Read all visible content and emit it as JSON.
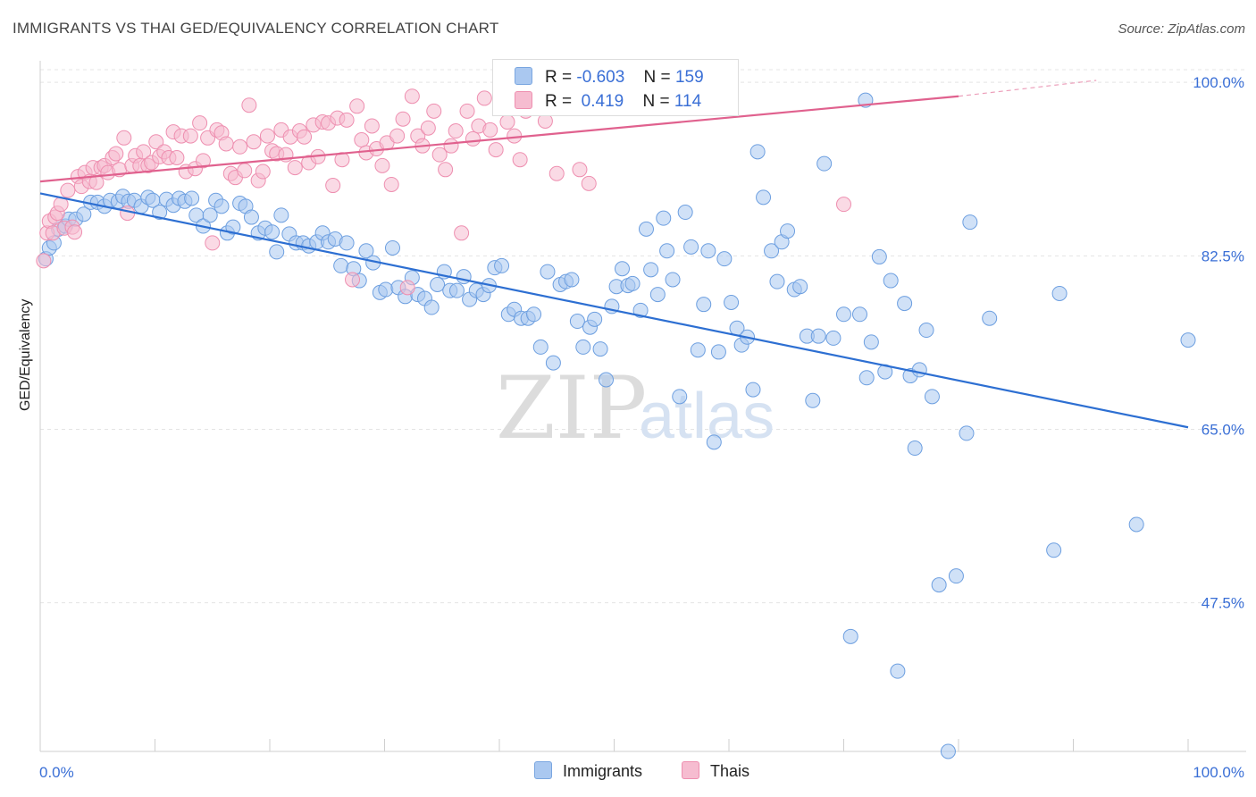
{
  "title": "IMMIGRANTS VS THAI GED/EQUIVALENCY CORRELATION CHART",
  "source": "Source: ZipAtlas.com",
  "watermark_zip": "ZIP",
  "watermark_atlas": "atlas",
  "legend_top": [
    {
      "r_label": "R =",
      "r_value": "-0.603",
      "n_label": "N =",
      "n_value": "159",
      "color": "#aac8f0",
      "border": "#7aa6e0"
    },
    {
      "r_label": "R =",
      "r_value": " 0.419",
      "n_label": "N =",
      "n_value": "114",
      "color": "#f6bcd0",
      "border": "#ee8fb0"
    }
  ],
  "legend_bottom": [
    {
      "label": "Immigrants",
      "color": "#aac8f0",
      "border": "#7aa6e0"
    },
    {
      "label": "Thais",
      "color": "#f6bcd0",
      "border": "#ee8fb0"
    }
  ],
  "chart_data": {
    "type": "scatter",
    "title": "IMMIGRANTS VS THAI GED/EQUIVALENCY CORRELATION CHART",
    "xlabel": "",
    "ylabel": "GED/Equivalency",
    "xlim": [
      0,
      100
    ],
    "ylim": [
      32.5,
      102
    ],
    "x_tick_labels": [
      "0.0%",
      "100.0%"
    ],
    "y_ticks": [
      47.5,
      65.0,
      82.5,
      100.0
    ],
    "y_tick_labels": [
      "47.5%",
      "65.0%",
      "82.5%",
      "100.0%"
    ],
    "grid": "horizontal dashed",
    "legend_position": "top-center",
    "series": [
      {
        "name": "Immigrants",
        "color": "#6d9fe0",
        "fill": "#aac8f0",
        "trend_color": "#2d6fd2",
        "trend": {
          "x0": 0,
          "y0": 88.8,
          "x1": 100,
          "y1": 65.2
        },
        "points": [
          [
            0.5,
            82.2
          ],
          [
            0.8,
            83.3
          ],
          [
            1.2,
            83.8
          ],
          [
            1.6,
            85.2
          ],
          [
            2.2,
            85.5
          ],
          [
            2.5,
            86.2
          ],
          [
            3.1,
            86.2
          ],
          [
            3.8,
            86.7
          ],
          [
            4.4,
            87.9
          ],
          [
            5.0,
            87.9
          ],
          [
            5.6,
            87.5
          ],
          [
            6.1,
            88.1
          ],
          [
            6.8,
            88.0
          ],
          [
            7.2,
            88.5
          ],
          [
            7.7,
            88.0
          ],
          [
            8.2,
            88.1
          ],
          [
            8.8,
            87.5
          ],
          [
            9.4,
            88.4
          ],
          [
            9.8,
            88.1
          ],
          [
            10.4,
            86.9
          ],
          [
            11.0,
            88.2
          ],
          [
            11.6,
            87.6
          ],
          [
            12.1,
            88.3
          ],
          [
            12.6,
            88.0
          ],
          [
            13.2,
            88.3
          ],
          [
            13.6,
            86.6
          ],
          [
            14.2,
            85.5
          ],
          [
            14.8,
            86.6
          ],
          [
            15.3,
            88.1
          ],
          [
            15.8,
            87.5
          ],
          [
            16.3,
            84.8
          ],
          [
            16.8,
            85.4
          ],
          [
            17.4,
            87.8
          ],
          [
            17.9,
            87.5
          ],
          [
            18.4,
            86.4
          ],
          [
            19.0,
            84.8
          ],
          [
            19.6,
            85.3
          ],
          [
            20.2,
            84.9
          ],
          [
            20.6,
            82.9
          ],
          [
            21.0,
            86.6
          ],
          [
            21.7,
            84.7
          ],
          [
            22.3,
            83.8
          ],
          [
            22.9,
            83.8
          ],
          [
            23.4,
            83.5
          ],
          [
            24.1,
            83.9
          ],
          [
            24.6,
            84.8
          ],
          [
            25.1,
            83.9
          ],
          [
            25.7,
            84.2
          ],
          [
            26.2,
            81.5
          ],
          [
            26.7,
            83.8
          ],
          [
            27.3,
            81.2
          ],
          [
            27.8,
            80.0
          ],
          [
            28.4,
            83.0
          ],
          [
            29.0,
            81.8
          ],
          [
            29.6,
            78.8
          ],
          [
            30.1,
            79.1
          ],
          [
            30.7,
            83.3
          ],
          [
            31.2,
            79.3
          ],
          [
            31.8,
            78.4
          ],
          [
            32.4,
            80.3
          ],
          [
            32.9,
            78.6
          ],
          [
            33.5,
            78.2
          ],
          [
            34.1,
            77.3
          ],
          [
            34.6,
            79.6
          ],
          [
            35.2,
            80.9
          ],
          [
            35.7,
            79.0
          ],
          [
            36.3,
            79.0
          ],
          [
            36.9,
            80.4
          ],
          [
            37.4,
            78.1
          ],
          [
            38.0,
            79.0
          ],
          [
            38.6,
            78.6
          ],
          [
            39.1,
            79.5
          ],
          [
            39.6,
            81.3
          ],
          [
            40.2,
            81.5
          ],
          [
            40.8,
            76.6
          ],
          [
            41.3,
            77.1
          ],
          [
            41.9,
            76.2
          ],
          [
            42.5,
            76.2
          ],
          [
            43.0,
            76.6
          ],
          [
            43.6,
            73.3
          ],
          [
            44.2,
            80.9
          ],
          [
            44.7,
            71.7
          ],
          [
            45.3,
            79.6
          ],
          [
            45.8,
            79.9
          ],
          [
            46.3,
            80.1
          ],
          [
            46.8,
            75.9
          ],
          [
            47.3,
            73.3
          ],
          [
            47.9,
            75.3
          ],
          [
            48.3,
            76.1
          ],
          [
            48.8,
            73.1
          ],
          [
            49.3,
            70.0
          ],
          [
            49.8,
            77.4
          ],
          [
            50.2,
            79.4
          ],
          [
            50.7,
            81.2
          ],
          [
            51.2,
            79.5
          ],
          [
            51.6,
            79.7
          ],
          [
            52.3,
            77.0
          ],
          [
            52.8,
            85.2
          ],
          [
            53.2,
            81.1
          ],
          [
            53.8,
            78.6
          ],
          [
            54.3,
            86.3
          ],
          [
            54.6,
            83.0
          ],
          [
            55.1,
            80.1
          ],
          [
            55.7,
            68.3
          ],
          [
            56.2,
            86.9
          ],
          [
            56.7,
            83.4
          ],
          [
            57.3,
            73.0
          ],
          [
            57.8,
            77.6
          ],
          [
            58.2,
            83.0
          ],
          [
            58.7,
            63.7
          ],
          [
            59.1,
            72.8
          ],
          [
            59.6,
            82.2
          ],
          [
            60.2,
            77.8
          ],
          [
            60.7,
            75.2
          ],
          [
            61.1,
            73.5
          ],
          [
            61.6,
            74.3
          ],
          [
            62.1,
            69.0
          ],
          [
            62.5,
            93.0
          ],
          [
            63.0,
            88.4
          ],
          [
            63.7,
            83.0
          ],
          [
            64.2,
            79.9
          ],
          [
            64.6,
            83.9
          ],
          [
            65.1,
            85.0
          ],
          [
            65.7,
            79.1
          ],
          [
            66.2,
            79.4
          ],
          [
            66.8,
            74.4
          ],
          [
            67.3,
            67.9
          ],
          [
            67.8,
            74.4
          ],
          [
            68.3,
            91.8
          ],
          [
            69.1,
            74.2
          ],
          [
            70.0,
            76.6
          ],
          [
            70.6,
            44.1
          ],
          [
            71.4,
            76.6
          ],
          [
            72.0,
            70.2
          ],
          [
            72.4,
            73.8
          ],
          [
            73.1,
            82.4
          ],
          [
            73.6,
            70.8
          ],
          [
            74.1,
            80.0
          ],
          [
            74.7,
            40.6
          ],
          [
            75.3,
            77.7
          ],
          [
            75.8,
            70.4
          ],
          [
            76.2,
            63.1
          ],
          [
            76.6,
            71.0
          ],
          [
            77.2,
            75.0
          ],
          [
            77.7,
            68.3
          ],
          [
            78.3,
            49.3
          ],
          [
            79.1,
            32.5
          ],
          [
            79.8,
            50.2
          ],
          [
            80.7,
            64.6
          ],
          [
            81.0,
            85.9
          ],
          [
            82.7,
            76.2
          ],
          [
            88.3,
            52.8
          ],
          [
            88.8,
            78.7
          ],
          [
            95.5,
            55.4
          ],
          [
            100.0,
            74.0
          ],
          [
            71.9,
            98.2
          ]
        ]
      },
      {
        "name": "Thais",
        "color": "#ee8fb0",
        "fill": "#f6bcd0",
        "trend_color": "#e0618e",
        "trend": {
          "x0": 0,
          "y0": 90.0,
          "x1": 80,
          "y1": 98.6
        },
        "trend_extension": {
          "x0": 80,
          "y0": 98.6,
          "x1": 92,
          "y1": 100.2
        },
        "points": [
          [
            0.3,
            82.0
          ],
          [
            0.6,
            84.8
          ],
          [
            0.8,
            86.0
          ],
          [
            1.1,
            84.8
          ],
          [
            1.3,
            86.4
          ],
          [
            1.5,
            86.8
          ],
          [
            1.8,
            87.7
          ],
          [
            2.1,
            85.3
          ],
          [
            2.4,
            89.1
          ],
          [
            2.8,
            85.4
          ],
          [
            3.0,
            84.9
          ],
          [
            3.3,
            90.5
          ],
          [
            3.6,
            89.5
          ],
          [
            3.9,
            90.9
          ],
          [
            4.3,
            90.0
          ],
          [
            4.6,
            91.4
          ],
          [
            4.9,
            89.9
          ],
          [
            5.3,
            91.4
          ],
          [
            5.6,
            91.6
          ],
          [
            5.9,
            90.9
          ],
          [
            6.3,
            92.4
          ],
          [
            6.6,
            92.8
          ],
          [
            6.9,
            91.2
          ],
          [
            7.3,
            94.4
          ],
          [
            7.6,
            86.8
          ],
          [
            8.0,
            91.6
          ],
          [
            8.3,
            92.6
          ],
          [
            8.7,
            91.6
          ],
          [
            9.0,
            93.0
          ],
          [
            9.4,
            91.6
          ],
          [
            9.7,
            91.9
          ],
          [
            10.1,
            94.0
          ],
          [
            10.4,
            92.5
          ],
          [
            10.8,
            93.0
          ],
          [
            11.2,
            92.4
          ],
          [
            11.6,
            95.0
          ],
          [
            11.9,
            92.4
          ],
          [
            12.3,
            94.6
          ],
          [
            12.7,
            91.0
          ],
          [
            13.1,
            94.6
          ],
          [
            13.5,
            91.3
          ],
          [
            13.9,
            95.9
          ],
          [
            14.2,
            92.1
          ],
          [
            14.6,
            94.4
          ],
          [
            15.0,
            83.8
          ],
          [
            15.4,
            95.2
          ],
          [
            15.8,
            94.9
          ],
          [
            16.2,
            93.8
          ],
          [
            16.6,
            90.8
          ],
          [
            17.0,
            90.4
          ],
          [
            17.4,
            93.5
          ],
          [
            17.8,
            91.1
          ],
          [
            18.2,
            97.7
          ],
          [
            18.6,
            94.0
          ],
          [
            19.0,
            90.1
          ],
          [
            19.4,
            91.0
          ],
          [
            19.8,
            94.6
          ],
          [
            20.2,
            93.1
          ],
          [
            20.6,
            92.8
          ],
          [
            21.0,
            95.2
          ],
          [
            21.4,
            92.7
          ],
          [
            21.8,
            94.5
          ],
          [
            22.2,
            91.4
          ],
          [
            22.6,
            95.1
          ],
          [
            23.0,
            94.5
          ],
          [
            23.4,
            91.9
          ],
          [
            23.8,
            95.7
          ],
          [
            24.2,
            92.5
          ],
          [
            24.6,
            96.0
          ],
          [
            25.1,
            95.9
          ],
          [
            25.5,
            89.6
          ],
          [
            25.9,
            96.4
          ],
          [
            26.3,
            92.2
          ],
          [
            26.7,
            96.2
          ],
          [
            27.2,
            80.1
          ],
          [
            27.6,
            97.6
          ],
          [
            28.0,
            94.2
          ],
          [
            28.4,
            92.9
          ],
          [
            28.9,
            95.6
          ],
          [
            29.3,
            93.3
          ],
          [
            29.8,
            91.6
          ],
          [
            30.2,
            93.9
          ],
          [
            30.6,
            89.7
          ],
          [
            31.1,
            94.6
          ],
          [
            31.6,
            96.3
          ],
          [
            32.0,
            79.3
          ],
          [
            32.4,
            98.6
          ],
          [
            32.9,
            94.6
          ],
          [
            33.3,
            93.6
          ],
          [
            33.8,
            95.4
          ],
          [
            34.3,
            97.1
          ],
          [
            34.8,
            92.7
          ],
          [
            35.3,
            91.2
          ],
          [
            35.8,
            93.6
          ],
          [
            36.2,
            95.1
          ],
          [
            36.7,
            84.8
          ],
          [
            37.2,
            97.1
          ],
          [
            37.7,
            94.3
          ],
          [
            38.2,
            95.6
          ],
          [
            38.7,
            98.4
          ],
          [
            39.2,
            95.2
          ],
          [
            39.7,
            93.2
          ],
          [
            40.2,
            98.9
          ],
          [
            40.7,
            96.0
          ],
          [
            41.3,
            94.6
          ],
          [
            41.8,
            92.2
          ],
          [
            42.3,
            97.1
          ],
          [
            42.8,
            99.6
          ],
          [
            44.0,
            96.1
          ],
          [
            45.0,
            90.8
          ],
          [
            46.0,
            97.5
          ],
          [
            47.0,
            91.2
          ],
          [
            47.8,
            89.8
          ],
          [
            70.0,
            87.7
          ]
        ]
      }
    ]
  }
}
